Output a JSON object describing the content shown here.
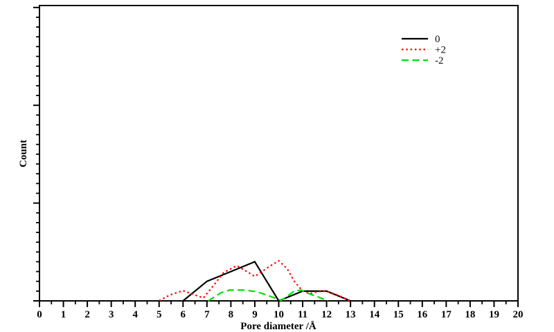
{
  "chart_data": {
    "type": "line",
    "title": "",
    "xlabel": "Pore diameter /Å",
    "ylabel": "Count",
    "xlim": [
      0,
      20
    ],
    "ylim": [
      0,
      30.2
    ],
    "x_major_tick_step": 1,
    "x_minor_step": 0.5,
    "x_tick_labels": [
      "0",
      "1",
      "2",
      "3",
      "4",
      "5",
      "6",
      "7",
      "8",
      "9",
      "10",
      "11",
      "12",
      "13",
      "14",
      "15",
      "16",
      "17",
      "18",
      "19",
      "20"
    ],
    "y_minor_step": 1,
    "y_major_step": 10,
    "y_tick_labels": [],
    "grid": false,
    "legend_position": "upper-right-inside",
    "frame": "full-box",
    "colors": {
      "series_0": "#000000",
      "series_plus2": "#ff0000",
      "series_minus2": "#00e000"
    },
    "series": [
      {
        "name": "0",
        "color": "#000000",
        "style": "solid",
        "points": [
          [
            6,
            0
          ],
          [
            7,
            2
          ],
          [
            8,
            3
          ],
          [
            9,
            4
          ],
          [
            10,
            0
          ],
          [
            11,
            1
          ],
          [
            12,
            1
          ],
          [
            13,
            0
          ]
        ]
      },
      {
        "name": "+2",
        "color": "#ff0000",
        "style": "dotted",
        "points": [
          [
            5,
            0.02
          ],
          [
            5.45,
            0.6
          ],
          [
            6,
            1.05
          ],
          [
            6.5,
            0.6
          ],
          [
            6.85,
            0.3
          ],
          [
            7.25,
            1.5
          ],
          [
            7.7,
            2.9
          ],
          [
            8.25,
            3.6
          ],
          [
            8.7,
            2.95
          ],
          [
            9,
            2.5
          ],
          [
            9.6,
            3.5
          ],
          [
            10,
            4.1
          ],
          [
            10.35,
            3.3
          ],
          [
            10.65,
            2
          ],
          [
            11,
            1
          ],
          [
            11.3,
            0.75
          ],
          [
            11.65,
            0.95
          ],
          [
            12,
            1
          ],
          [
            12.5,
            0.55
          ],
          [
            12.95,
            0.02
          ]
        ]
      },
      {
        "name": "-2",
        "color": "#00e000",
        "style": "dashed",
        "points": [
          [
            7.05,
            0
          ],
          [
            7.6,
            0.85
          ],
          [
            7.95,
            1.1
          ],
          [
            8.55,
            1.1
          ],
          [
            9.05,
            0.95
          ],
          [
            9.5,
            0.6
          ],
          [
            10.1,
            0.05
          ],
          [
            10.65,
            1
          ],
          [
            10.95,
            1.1
          ],
          [
            11.3,
            0.7
          ],
          [
            11.6,
            0.45
          ],
          [
            12.05,
            0
          ]
        ]
      }
    ]
  }
}
